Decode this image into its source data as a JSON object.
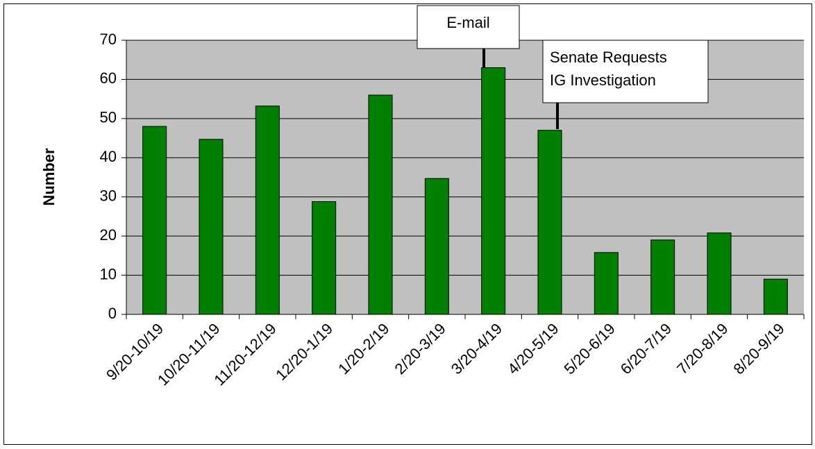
{
  "chart_data": {
    "type": "bar",
    "y_label": "Number",
    "categories": [
      "9/20-10/19",
      "10/20-11/19",
      "11/20-12/19",
      "12/20-1/19",
      "1/20-2/19",
      "2/20-3/19",
      "3/20-4/19",
      "4/20-5/19",
      "5/20-6/19",
      "6/20-7/19",
      "7/20-8/19",
      "8/20-9/19"
    ],
    "values": [
      48,
      44.7,
      53.2,
      28.8,
      56,
      34.7,
      63,
      47,
      15.8,
      19,
      20.8,
      9
    ],
    "color": "#008000",
    "ylim": [
      0,
      70
    ],
    "yticks": [
      0,
      10,
      20,
      30,
      40,
      50,
      60,
      70
    ],
    "grid": true,
    "annotations": [
      [
        "E-mail"
      ],
      [
        "Senate Requests",
        "IG Investigation"
      ]
    ]
  }
}
